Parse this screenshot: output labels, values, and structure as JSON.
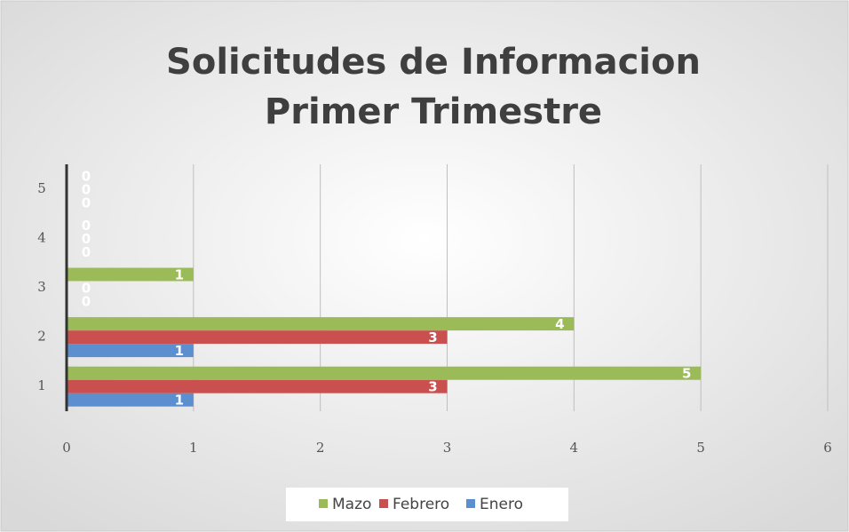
{
  "chart_data": {
    "type": "bar",
    "orientation": "horizontal",
    "title": [
      "Solicitudes de Informacion",
      "Primer Trimestre"
    ],
    "categories": [
      "1",
      "2",
      "3",
      "4",
      "5"
    ],
    "series": [
      {
        "name": "Enero",
        "color": "#5b8fd0",
        "values": [
          1,
          1,
          0,
          0,
          0
        ]
      },
      {
        "name": "Febrero",
        "color": "#c9504f",
        "values": [
          3,
          3,
          0,
          0,
          0
        ]
      },
      {
        "name": "Mazo",
        "color": "#9bbb59",
        "values": [
          5,
          4,
          1,
          0,
          0
        ]
      }
    ],
    "xlim": [
      0,
      6
    ],
    "xticks": [
      0,
      1,
      2,
      3,
      4,
      5,
      6
    ],
    "grid": true,
    "legend": "bottom",
    "data_labels": true
  }
}
